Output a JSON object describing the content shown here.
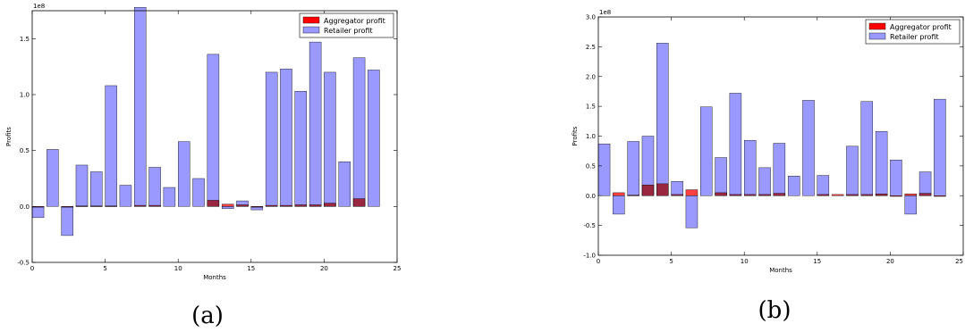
{
  "chart_data": [
    {
      "type": "bar",
      "caption": "(a)",
      "xlabel": "Months",
      "ylabel": "Profits",
      "offset_label": "1e8",
      "xlim": [
        0,
        25
      ],
      "ylim": [
        -0.5,
        1.75
      ],
      "xticks": [
        0,
        5,
        10,
        15,
        20,
        25
      ],
      "yticks": [
        -0.5,
        0.0,
        0.5,
        1.0,
        1.5
      ],
      "legend_position": "top-right",
      "series": [
        {
          "name": "Aggregator profit",
          "color": "#ff0000",
          "x": [
            0,
            1,
            2,
            3,
            4,
            5,
            6,
            7,
            8,
            9,
            10,
            11,
            12,
            13,
            14,
            15,
            16,
            17,
            18,
            19,
            20,
            21,
            22,
            23
          ],
          "values": [
            -0.005,
            0,
            -0.005,
            0.005,
            0.005,
            0.005,
            0,
            0.01,
            0.01,
            0,
            0,
            0,
            0.055,
            0.02,
            0.015,
            -0.005,
            0.01,
            0.01,
            0.015,
            0.015,
            0.03,
            0,
            0.07,
            0
          ]
        },
        {
          "name": "Retailer profit",
          "color": "#9999ff",
          "x": [
            0,
            1,
            2,
            3,
            4,
            5,
            6,
            7,
            8,
            9,
            10,
            11,
            12,
            13,
            14,
            15,
            16,
            17,
            18,
            19,
            20,
            21,
            22,
            23
          ],
          "values": [
            -0.1,
            0.51,
            -0.26,
            0.37,
            0.31,
            1.08,
            0.19,
            1.78,
            0.35,
            0.17,
            0.58,
            0.25,
            1.36,
            -0.02,
            0.05,
            -0.03,
            1.2,
            1.23,
            1.03,
            1.47,
            1.2,
            0.4,
            1.33,
            1.22
          ]
        }
      ]
    },
    {
      "type": "bar",
      "caption": "(b)",
      "xlabel": "Months",
      "ylabel": "Profits",
      "offset_label": "1e8",
      "xlim": [
        0,
        25
      ],
      "ylim": [
        -1.0,
        3.0
      ],
      "xticks": [
        0,
        5,
        10,
        15,
        20,
        25
      ],
      "yticks": [
        -1.0,
        -0.5,
        0.0,
        0.5,
        1.0,
        1.5,
        2.0,
        2.5,
        3.0
      ],
      "legend_position": "top-right",
      "series": [
        {
          "name": "Aggregator profit",
          "color": "#ff0000",
          "x": [
            0,
            1,
            2,
            3,
            4,
            5,
            6,
            7,
            8,
            9,
            10,
            11,
            12,
            13,
            14,
            15,
            16,
            17,
            18,
            19,
            20,
            21,
            22,
            23
          ],
          "values": [
            0,
            0.05,
            0.01,
            0.18,
            0.2,
            0.02,
            0.1,
            0,
            0.05,
            0.02,
            0.02,
            0.02,
            0.04,
            0,
            0,
            0.02,
            0.02,
            0.02,
            0.02,
            0.03,
            -0.01,
            0.03,
            0.04,
            -0.01
          ]
        },
        {
          "name": "Retailer profit",
          "color": "#9999ff",
          "x": [
            0,
            1,
            2,
            3,
            4,
            5,
            6,
            7,
            8,
            9,
            10,
            11,
            12,
            13,
            14,
            15,
            16,
            17,
            18,
            19,
            20,
            21,
            22,
            23
          ],
          "values": [
            0.87,
            -0.31,
            0.91,
            1.0,
            2.56,
            0.24,
            -0.54,
            1.49,
            0.64,
            1.72,
            0.93,
            0.47,
            0.88,
            0.33,
            1.6,
            0.34,
            0,
            0.83,
            1.58,
            1.08,
            0.6,
            -0.31,
            0.4,
            1.62
          ]
        }
      ]
    }
  ]
}
